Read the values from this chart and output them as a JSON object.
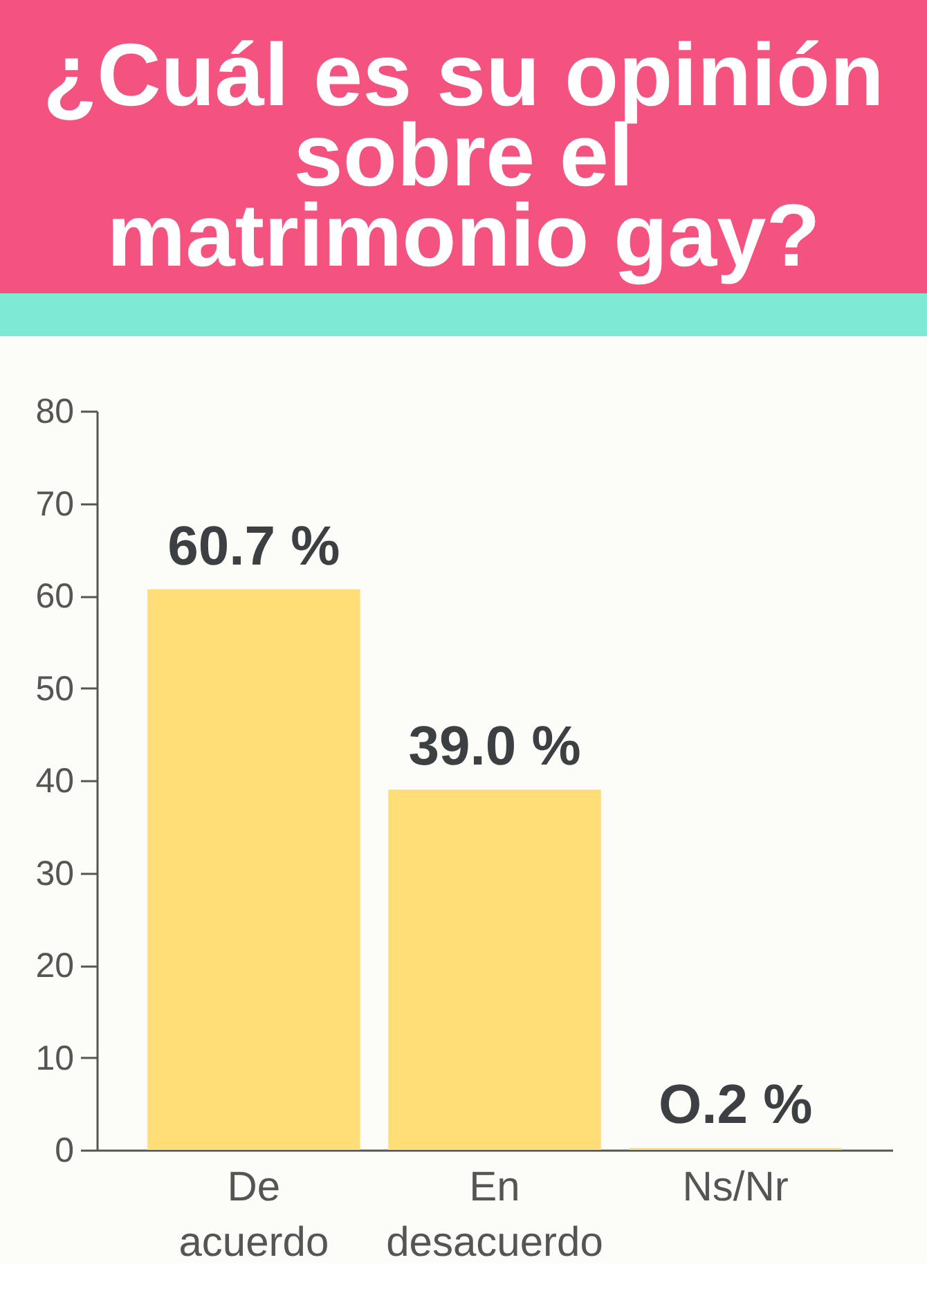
{
  "chart_data": {
    "type": "bar",
    "title": "¿Cuál es su opinión\nsobre el\nmatrimonio gay?",
    "categories": [
      "De acuerdo",
      "En desacuerdo",
      "Ns/Nr"
    ],
    "values": [
      60.7,
      39.0,
      0.2
    ],
    "color": "#ffdd77",
    "value_labels": [
      "60.7 %",
      "39.0 %",
      "O.2 %"
    ],
    "ylim": [
      0,
      80
    ],
    "yticks": [
      0,
      10,
      20,
      30,
      40,
      50,
      60,
      70,
      80
    ],
    "grid": false
  }
}
